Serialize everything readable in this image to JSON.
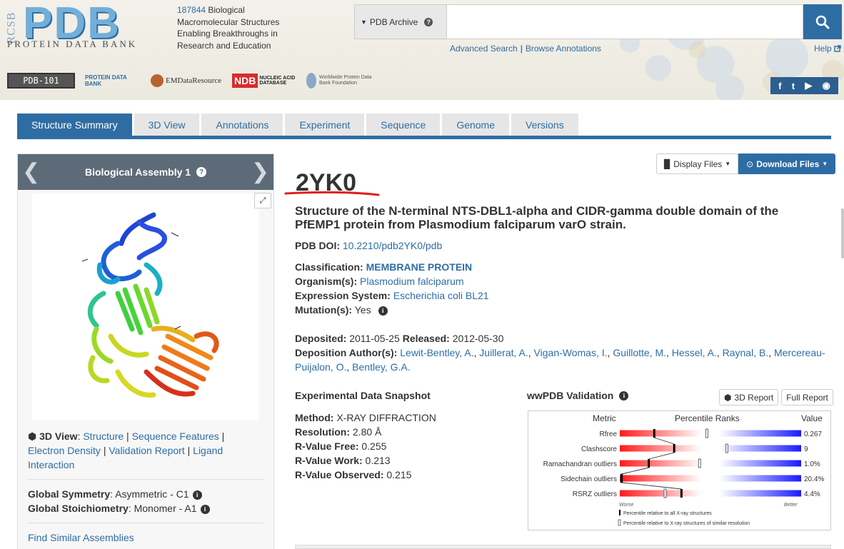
{
  "header": {
    "logo_side": "RCSB",
    "logo_main": "PDB",
    "logo_sub": "PROTEIN DATA BANK",
    "entry_count": "187844",
    "tagline": "Biological Macromolecular Structures Enabling Breakthroughs in Research and Education",
    "search_scope": "PDB Archive",
    "search_placeholder": "",
    "links": {
      "advanced": "Advanced Search",
      "browse": "Browse Annotations",
      "help": "Help"
    },
    "partners": {
      "pdb101": "PDB-101",
      "wwpdb": "PROTEIN DATA BANK",
      "emdb": "EMDataResource",
      "ndb": "NDB",
      "ndb_text": "NUCLEIC ACID DATABASE",
      "foundation": "Worldwide Protein Data Bank Foundation"
    },
    "social_icons": [
      "facebook-icon",
      "twitter-icon",
      "youtube-icon",
      "github-icon"
    ]
  },
  "tabs": [
    {
      "label": "Structure Summary",
      "active": true
    },
    {
      "label": "3D View"
    },
    {
      "label": "Annotations"
    },
    {
      "label": "Experiment"
    },
    {
      "label": "Sequence"
    },
    {
      "label": "Genome"
    },
    {
      "label": "Versions"
    }
  ],
  "assembly": {
    "title": "Biological Assembly 1",
    "view_label": "3D View",
    "view_links": [
      "Structure",
      "Sequence Features",
      "Electron Density",
      "Validation Report",
      "Ligand Interaction"
    ],
    "global_symmetry_label": "Global Symmetry",
    "global_symmetry": "Asymmetric - C1",
    "global_stoich_label": "Global Stoichiometry",
    "global_stoich": "Monomer - A1",
    "find_similar": "Find Similar Assemblies"
  },
  "actions": {
    "display_files": "Display Files",
    "download_files": "Download Files"
  },
  "entry": {
    "id": "2YK0",
    "title": "Structure of the N-terminal NTS-DBL1-alpha and CIDR-gamma double domain of the PfEMP1 protein from Plasmodium falciparum varO strain.",
    "doi_label": "PDB DOI:",
    "doi": "10.2210/pdb2YK0/pdb",
    "classification_label": "Classification:",
    "classification": "MEMBRANE PROTEIN",
    "organism_label": "Organism(s):",
    "organism": "Plasmodium falciparum",
    "expression_label": "Expression System:",
    "expression": "Escherichia coli BL21",
    "mutation_label": "Mutation(s):",
    "mutation": "Yes",
    "deposited_label": "Deposited:",
    "deposited": "2011-05-25",
    "released_label": "Released:",
    "released": "2012-05-30",
    "authors_label": "Deposition Author(s):",
    "authors": [
      "Lewit-Bentley, A.",
      "Juillerat, A.",
      "Vigan-Womas, I.",
      "Guillotte, M.",
      "Hessel, A.",
      "Raynal, B.",
      "Mercereau-Puijalon, O.",
      "Bentley, G.A."
    ]
  },
  "experimental": {
    "title": "Experimental Data Snapshot",
    "method_label": "Method:",
    "method": "X-RAY DIFFRACTION",
    "resolution_label": "Resolution:",
    "resolution": "2.80 Å",
    "rfree_label": "R-Value Free:",
    "rfree": "0.255",
    "rwork_label": "R-Value Work:",
    "rwork": "0.213",
    "robs_label": "R-Value Observed:",
    "robs": "0.215"
  },
  "validation": {
    "title": "wwPDB Validation",
    "btn_3d": "3D Report",
    "btn_full": "Full Report",
    "header": {
      "metric": "Metric",
      "ranks": "Percentile Ranks",
      "value": "Value"
    },
    "rows": [
      {
        "metric": "Rfree",
        "value": "0.267",
        "all": 0.19,
        "similar": 0.48
      },
      {
        "metric": "Clashscore",
        "value": "9",
        "all": 0.3,
        "similar": 0.59
      },
      {
        "metric": "Ramachandran outliers",
        "value": "1.0%",
        "all": 0.16,
        "similar": 0.44
      },
      {
        "metric": "Sidechain outliers",
        "value": "20.4%",
        "all": 0.01,
        "similar": 0.01
      },
      {
        "metric": "RSRZ outliers",
        "value": "4.4%",
        "all": 0.34,
        "similar": 0.25
      }
    ],
    "worse": "Worse",
    "better": "Better",
    "legend_all": "Percentile relative to all X-ray structures",
    "legend_similar": "Percentile relative to X-ray structures of similar resolution"
  }
}
